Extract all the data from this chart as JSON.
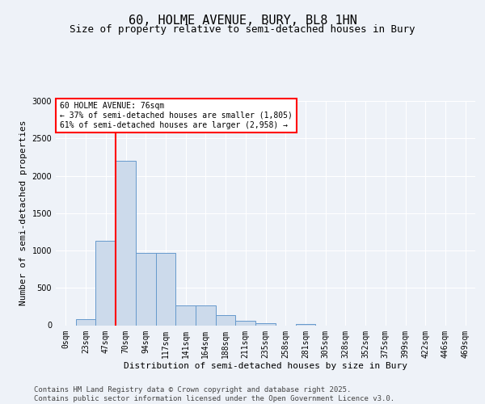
{
  "title": "60, HOLME AVENUE, BURY, BL8 1HN",
  "subtitle": "Size of property relative to semi-detached houses in Bury",
  "xlabel": "Distribution of semi-detached houses by size in Bury",
  "ylabel": "Number of semi-detached properties",
  "bin_labels": [
    "0sqm",
    "23sqm",
    "47sqm",
    "70sqm",
    "94sqm",
    "117sqm",
    "141sqm",
    "164sqm",
    "188sqm",
    "211sqm",
    "235sqm",
    "258sqm",
    "281sqm",
    "305sqm",
    "328sqm",
    "352sqm",
    "375sqm",
    "399sqm",
    "422sqm",
    "446sqm",
    "469sqm"
  ],
  "bar_values": [
    0,
    80,
    1130,
    2200,
    970,
    970,
    270,
    270,
    130,
    60,
    30,
    0,
    20,
    0,
    0,
    0,
    0,
    0,
    0,
    0,
    0
  ],
  "bar_color": "#ccdaeb",
  "bar_edge_color": "#6699cc",
  "vline_x": 3,
  "vline_color": "red",
  "annotation_text": "60 HOLME AVENUE: 76sqm\n← 37% of semi-detached houses are smaller (1,805)\n61% of semi-detached houses are larger (2,958) →",
  "annotation_box_color": "white",
  "annotation_box_edge_color": "red",
  "ylim": [
    0,
    3000
  ],
  "yticks": [
    0,
    500,
    1000,
    1500,
    2000,
    2500,
    3000
  ],
  "footer_text": "Contains HM Land Registry data © Crown copyright and database right 2025.\nContains public sector information licensed under the Open Government Licence v3.0.",
  "background_color": "#eef2f8",
  "plot_bg_color": "#eef2f8",
  "grid_color": "white",
  "title_fontsize": 11,
  "subtitle_fontsize": 9,
  "axis_label_fontsize": 8,
  "tick_fontsize": 7,
  "footer_fontsize": 6.5
}
